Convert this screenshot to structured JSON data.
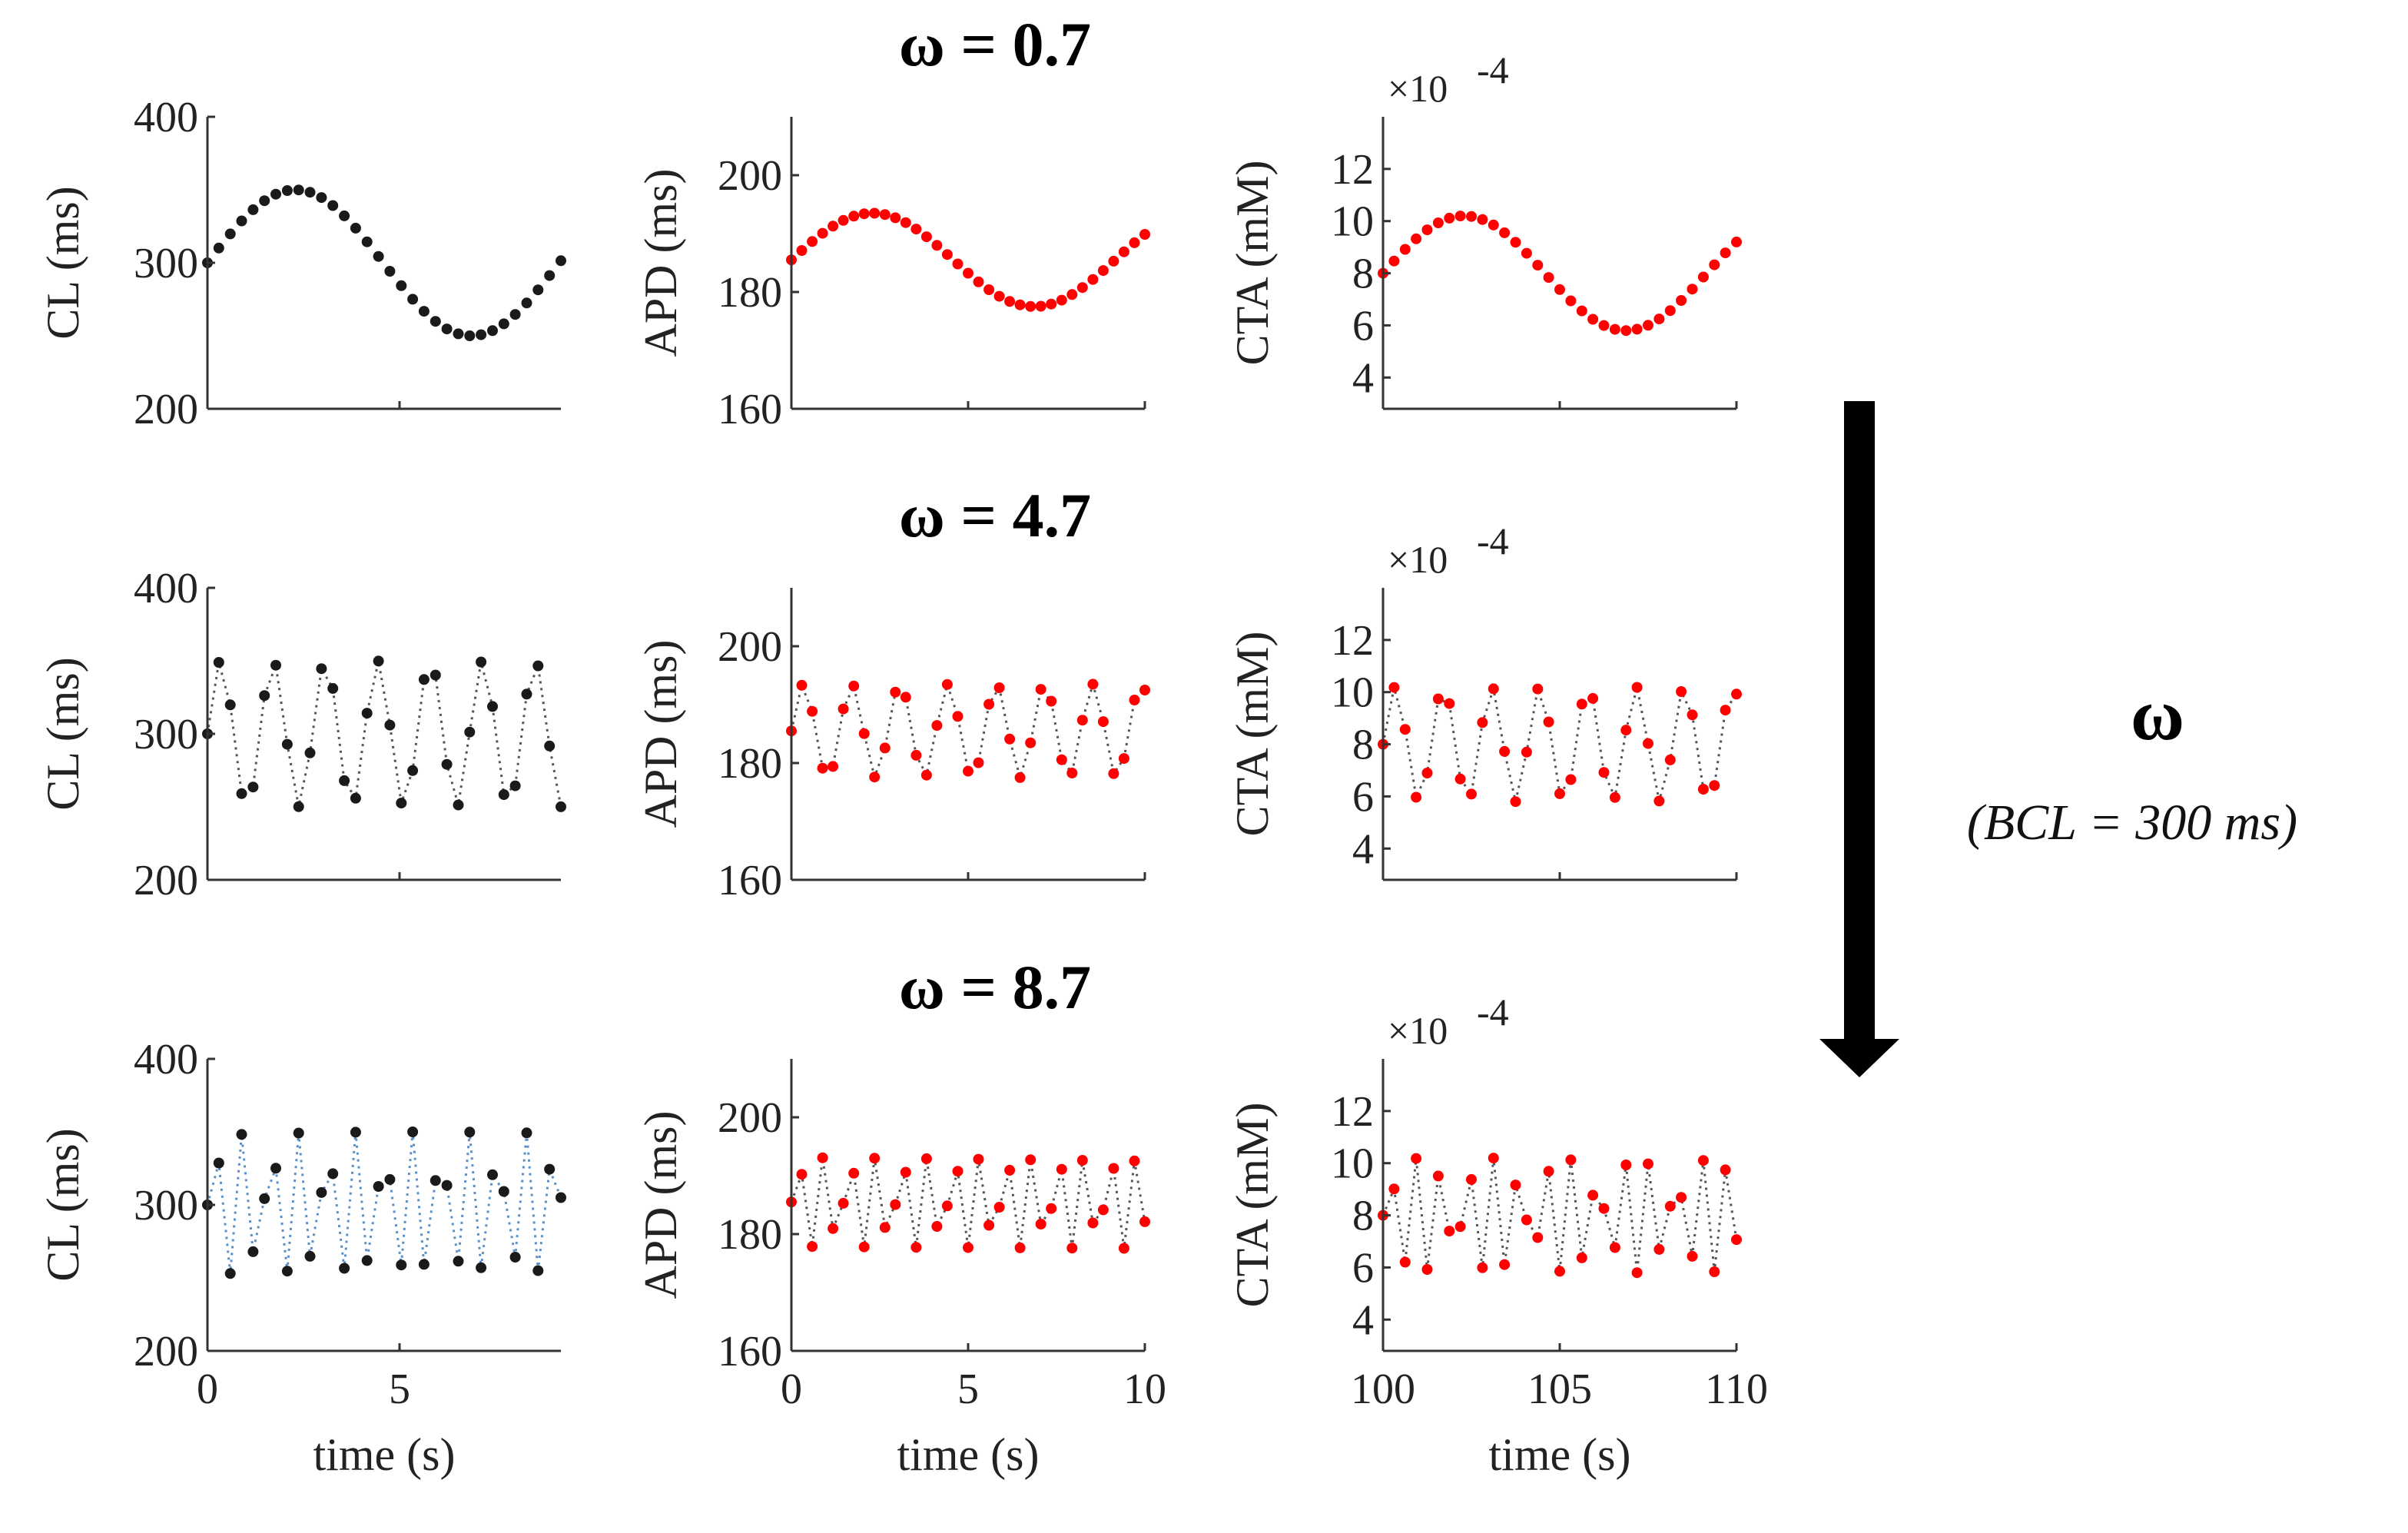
{
  "figure": {
    "rows": [
      {
        "title": "ω = 0.7",
        "omega": 0.7
      },
      {
        "title": "ω = 4.7",
        "omega": 4.7
      },
      {
        "title": "ω = 8.7",
        "omega": 8.7
      }
    ],
    "side_label": {
      "symbol": "ω",
      "note": "(BCL = 300 ms)"
    },
    "exponent_label": "×10",
    "exponent_power": "-4"
  },
  "chart_data": [
    {
      "type": "scatter",
      "column": "CL",
      "ylabel": "CL (ms)",
      "xlabel": "time (s)",
      "xlim": [
        0,
        9.2
      ],
      "ylim": [
        200,
        400
      ],
      "xticks": [
        "0",
        "5"
      ],
      "xtick_values": [
        0,
        5
      ],
      "yticks": [
        "200",
        "300",
        "400"
      ],
      "ytick_values": [
        200,
        300,
        400
      ],
      "marker_color": "#1a1a1a",
      "base": 300,
      "amplitude": 50,
      "series": [
        {
          "name": "ω = 0.7",
          "omega": 0.7,
          "x_end": 9.2,
          "n_points": 32,
          "connected": false
        },
        {
          "name": "ω = 4.7",
          "omega": 4.7,
          "x_end": 9.2,
          "n_points": 32,
          "connected": true
        },
        {
          "name": "ω = 8.7",
          "omega": 8.7,
          "x_end": 9.2,
          "n_points": 32,
          "connected": true
        }
      ]
    },
    {
      "type": "scatter",
      "column": "APD",
      "ylabel": "APD (ms)",
      "xlabel": "time (s)",
      "xlim": [
        0,
        10
      ],
      "ylim": [
        160,
        210
      ],
      "xticks": [
        "0",
        "5",
        "10"
      ],
      "xtick_values": [
        0,
        5,
        10
      ],
      "yticks": [
        "160",
        "180",
        "200"
      ],
      "ytick_values": [
        160,
        180,
        200
      ],
      "marker_color": "#ff0000",
      "base": 185.5,
      "amplitude": 8,
      "series": [
        {
          "name": "ω = 0.7",
          "omega": 0.7,
          "x_end": 10,
          "n_points": 35,
          "connected": false
        },
        {
          "name": "ω = 4.7",
          "omega": 4.7,
          "x_end": 10,
          "n_points": 35,
          "connected": true
        },
        {
          "name": "ω = 8.7",
          "omega": 8.7,
          "x_end": 10,
          "n_points": 35,
          "connected": true
        }
      ]
    },
    {
      "type": "scatter",
      "column": "CTA",
      "ylabel": "CTA (mM)",
      "xlabel": "time (s)",
      "xlim": [
        100,
        110
      ],
      "ylim": [
        2.8,
        14
      ],
      "xticks": [
        "100",
        "105",
        "110"
      ],
      "xtick_values": [
        100,
        105,
        110
      ],
      "yticks": [
        "4",
        "6",
        "8",
        "10",
        "12"
      ],
      "ytick_values": [
        4,
        6,
        8,
        10,
        12
      ],
      "marker_color": "#ff0000",
      "base": 8,
      "amplitude": 2.2,
      "series": [
        {
          "name": "ω = 0.7",
          "omega": 0.7,
          "x_end": 110,
          "n_points": 33,
          "connected": false
        },
        {
          "name": "ω = 4.7",
          "omega": 4.7,
          "x_end": 110,
          "n_points": 33,
          "connected": true
        },
        {
          "name": "ω = 8.7",
          "omega": 8.7,
          "x_end": 110,
          "n_points": 33,
          "connected": true
        }
      ]
    }
  ]
}
